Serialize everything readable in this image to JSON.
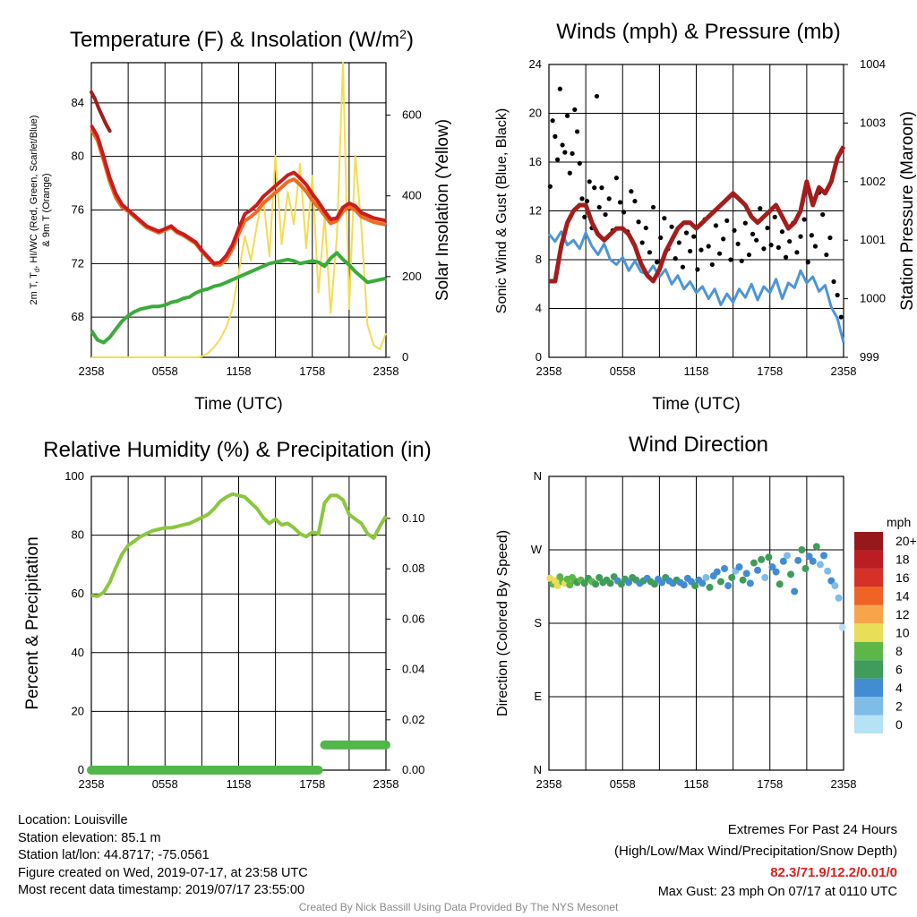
{
  "x_tick_labels": [
    "2358",
    "0558",
    "1158",
    "1758",
    "2358"
  ],
  "colors": {
    "temperature": "#c91d1d",
    "wind_chill": "#ee6b21",
    "dewpoint": "#3bab3b",
    "insolation": "#f3dc55",
    "wind_speed": "#4d96d6",
    "wind_gust": "#000000",
    "pressure": "#a31d1d",
    "humidity": "#8cc63f",
    "precipitation": "#52b74a"
  },
  "chart_data": [
    {
      "id": "temperature",
      "type": "line",
      "title": "Temperature (F) & Insolation (W/m",
      "title_sup": "2",
      "title_end": ")",
      "xlabel": "Time (UTC)",
      "ylabel_left_line1": "2m T, T",
      "ylabel_left_sub": "d",
      "ylabel_left_line1_end": ", HI/WC (Red, Green, Scarlet/Blue)",
      "ylabel_left_line2": "& 9m T (Orange)",
      "ylabel_right": "Solar Insolation (Yellow)",
      "xlim": [
        0,
        24
      ],
      "ylim": [
        65,
        87
      ],
      "y2lim": [
        0,
        730
      ],
      "yticks": [
        68,
        72,
        76,
        80,
        84
      ],
      "y2ticks": [
        0,
        200,
        400,
        600
      ],
      "x": [
        0,
        0.5,
        1,
        1.5,
        2,
        2.5,
        3,
        3.5,
        4,
        4.5,
        5,
        5.5,
        6,
        6.5,
        7,
        7.5,
        8,
        8.5,
        9,
        9.5,
        10,
        10.5,
        11,
        11.5,
        12,
        12.5,
        13,
        13.5,
        14,
        14.5,
        15,
        15.5,
        16,
        16.5,
        17,
        17.5,
        18,
        18.5,
        19,
        19.5,
        20,
        20.5,
        21,
        21.5,
        22,
        22.5,
        23,
        23.5,
        24
      ],
      "series": [
        {
          "key": "temperature",
          "values": [
            82.3,
            81.5,
            80.0,
            78.4,
            77.2,
            76.4,
            76.0,
            75.6,
            75.2,
            74.8,
            74.6,
            74.4,
            74.6,
            74.8,
            74.4,
            74.2,
            73.9,
            73.6,
            73.0,
            72.5,
            72.0,
            72.1,
            72.6,
            73.4,
            74.6,
            75.7,
            76.0,
            76.4,
            77.0,
            77.4,
            77.8,
            78.2,
            78.6,
            78.8,
            78.4,
            77.9,
            77.2,
            76.6,
            75.9,
            75.3,
            75.4,
            76.2,
            76.5,
            76.3,
            75.8,
            75.6,
            75.4,
            75.3,
            75.2
          ]
        },
        {
          "key": "wind_chill",
          "values": [
            82.0,
            81.2,
            79.7,
            78.1,
            76.9,
            76.2,
            75.9,
            75.5,
            75.1,
            74.7,
            74.5,
            74.3,
            74.5,
            74.7,
            74.3,
            74.1,
            73.8,
            73.5,
            72.9,
            72.4,
            71.9,
            71.9,
            72.3,
            73.1,
            74.2,
            75.2,
            75.5,
            75.9,
            76.5,
            76.9,
            77.3,
            77.7,
            78.1,
            78.3,
            77.9,
            77.4,
            76.7,
            76.2,
            75.6,
            75.0,
            75.2,
            75.9,
            76.2,
            76.0,
            75.5,
            75.3,
            75.1,
            75.0,
            74.9
          ]
        },
        {
          "key": "dewpoint",
          "values": [
            67.0,
            66.3,
            66.1,
            66.5,
            67.1,
            67.7,
            68.1,
            68.4,
            68.6,
            68.7,
            68.8,
            68.8,
            68.9,
            69.1,
            69.2,
            69.4,
            69.5,
            69.8,
            70.0,
            70.1,
            70.3,
            70.4,
            70.6,
            70.8,
            71.0,
            71.2,
            71.4,
            71.6,
            71.8,
            72.0,
            72.1,
            72.2,
            72.3,
            72.2,
            72.0,
            72.1,
            72.2,
            72.1,
            71.8,
            72.4,
            72.8,
            72.3,
            71.9,
            71.4,
            71.0,
            70.6,
            70.7,
            70.8,
            70.9
          ]
        },
        {
          "key": "insolation",
          "axis": "right",
          "values": [
            0,
            0,
            0,
            0,
            0,
            0,
            0,
            0,
            0,
            0,
            0,
            0,
            0,
            0,
            0,
            0,
            0,
            0,
            2,
            10,
            25,
            45,
            75,
            120,
            210,
            300,
            240,
            330,
            400,
            250,
            500,
            280,
            410,
            330,
            480,
            270,
            450,
            160,
            350,
            110,
            300,
            730,
            120,
            500,
            320,
            80,
            30,
            20,
            60
          ]
        }
      ],
      "side_series": [
        {
          "key": "temperature",
          "x": [
            0,
            0.3,
            0.6,
            0.9,
            1.2,
            1.5
          ],
          "values": [
            84.8,
            84.3,
            83.6,
            83.0,
            82.4,
            81.9
          ]
        }
      ]
    },
    {
      "id": "winds",
      "type": "line",
      "title": "Winds (mph) & Pressure (mb)",
      "xlabel": "Time (UTC)",
      "ylabel_left": "Sonic Wind & Gust (Blue, Black)",
      "ylabel_right": "Station Pressure (Maroon)",
      "xlim": [
        0,
        24
      ],
      "ylim": [
        0,
        24
      ],
      "y2lim": [
        999,
        1004
      ],
      "yticks": [
        0,
        4,
        8,
        12,
        16,
        20,
        24
      ],
      "y2ticks": [
        999,
        1000,
        1001,
        1002,
        1003,
        1004
      ],
      "x": [
        0,
        0.5,
        1,
        1.5,
        2,
        2.5,
        3,
        3.5,
        4,
        4.5,
        5,
        5.5,
        6,
        6.5,
        7,
        7.5,
        8,
        8.5,
        9,
        9.5,
        10,
        10.5,
        11,
        11.5,
        12,
        12.5,
        13,
        13.5,
        14,
        14.5,
        15,
        15.5,
        16,
        16.5,
        17,
        17.5,
        18,
        18.5,
        19,
        19.5,
        20,
        20.5,
        21,
        21.5,
        22,
        22.5,
        23,
        23.5,
        24
      ],
      "series": [
        {
          "key": "wind_speed",
          "values": [
            10.1,
            9.5,
            10.3,
            9.2,
            9.6,
            8.9,
            10.2,
            9.1,
            8.4,
            9.3,
            8.0,
            7.6,
            8.2,
            7.1,
            7.9,
            7.0,
            6.8,
            7.5,
            6.6,
            7.2,
            6.0,
            6.7,
            5.6,
            6.2,
            5.3,
            5.8,
            4.8,
            5.6,
            4.3,
            5.2,
            4.5,
            5.6,
            4.9,
            6.0,
            4.7,
            5.8,
            5.3,
            6.4,
            4.8,
            6.1,
            5.7,
            7.1,
            6.1,
            6.6,
            5.4,
            5.9,
            4.1,
            3.2,
            1.2
          ]
        },
        {
          "key": "pressure",
          "axis": "right",
          "values": [
            1000.3,
            1000.3,
            1000.9,
            1001.3,
            1001.5,
            1001.6,
            1001.6,
            1001.3,
            1001.1,
            1001.0,
            1001.1,
            1001.2,
            1001.2,
            1001.1,
            1000.9,
            1000.6,
            1000.4,
            1000.3,
            1000.5,
            1000.8,
            1001.0,
            1001.2,
            1001.3,
            1001.3,
            1001.2,
            1001.3,
            1001.4,
            1001.5,
            1001.6,
            1001.7,
            1001.8,
            1001.7,
            1001.6,
            1001.4,
            1001.3,
            1001.4,
            1001.5,
            1001.6,
            1001.4,
            1001.2,
            1001.3,
            1001.5,
            1002.0,
            1001.6,
            1001.9,
            1001.8,
            1002.0,
            1002.4,
            1002.6
          ]
        }
      ],
      "gust_points": {
        "x": [
          0.1,
          0.3,
          0.5,
          0.7,
          0.9,
          1.1,
          1.3,
          1.5,
          1.7,
          1.9,
          2.1,
          2.3,
          2.5,
          2.7,
          2.9,
          3.1,
          3.3,
          3.5,
          3.7,
          3.9,
          4.1,
          4.3,
          4.6,
          4.9,
          5.2,
          5.5,
          5.8,
          6.1,
          6.4,
          6.7,
          7.0,
          7.3,
          7.6,
          7.9,
          8.2,
          8.5,
          8.8,
          9.1,
          9.4,
          9.7,
          10.0,
          10.3,
          10.6,
          10.9,
          11.2,
          11.5,
          11.8,
          12.1,
          12.4,
          12.7,
          13.0,
          13.3,
          13.6,
          13.9,
          14.2,
          14.5,
          14.8,
          15.1,
          15.4,
          15.7,
          16.0,
          16.3,
          16.6,
          16.9,
          17.2,
          17.5,
          17.8,
          18.1,
          18.4,
          18.7,
          19.0,
          19.3,
          19.6,
          19.9,
          20.2,
          20.5,
          20.8,
          21.1,
          21.4,
          21.7,
          22.0,
          22.3,
          22.6,
          22.9,
          23.2,
          23.5,
          23.8
        ],
        "values": [
          14.0,
          19.4,
          18.1,
          16.2,
          22.0,
          17.4,
          16.8,
          19.8,
          15.1,
          16.7,
          20.3,
          18.5,
          15.9,
          13.0,
          11.5,
          12.8,
          14.4,
          10.6,
          13.9,
          21.4,
          12.3,
          13.9,
          11.7,
          13.0,
          10.4,
          14.7,
          12.7,
          11.9,
          10.3,
          13.6,
          12.8,
          11.1,
          9.4,
          10.6,
          8.6,
          12.3,
          7.8,
          9.8,
          11.4,
          8.9,
          10.7,
          8.1,
          9.4,
          7.4,
          10.2,
          8.7,
          9.9,
          7.2,
          8.8,
          11.3,
          9.1,
          7.6,
          10.8,
          8.5,
          9.7,
          11.2,
          8.0,
          10.4,
          9.3,
          7.9,
          11.0,
          8.4,
          10.1,
          9.6,
          12.2,
          8.9,
          10.6,
          9.2,
          11.5,
          9.0,
          10.3,
          8.2,
          9.5,
          11.0,
          8.6,
          9.9,
          11.3,
          7.8,
          10.0,
          9.1,
          13.5,
          11.7,
          8.4,
          9.8,
          6.2,
          5.1,
          3.3
        ]
      }
    },
    {
      "id": "humidity",
      "type": "line",
      "title": "Relative Humidity (%) & Precipitation (in)",
      "ylabel_left": "Percent & Precipitation",
      "xlim": [
        0,
        24
      ],
      "ylim": [
        0,
        100
      ],
      "y2lim": [
        0,
        0.1167
      ],
      "yticks": [
        0,
        20,
        40,
        60,
        80,
        100
      ],
      "y2ticks": [
        0.0,
        0.02,
        0.04,
        0.06,
        0.08,
        0.1
      ],
      "y2tick_labels": [
        "0.00",
        "0.02",
        "0.04",
        "0.06",
        "0.08",
        "0.10"
      ],
      "x": [
        0,
        0.5,
        1,
        1.5,
        2,
        2.5,
        3,
        3.5,
        4,
        4.5,
        5,
        5.5,
        6,
        6.5,
        7,
        7.5,
        8,
        8.5,
        9,
        9.5,
        10,
        10.5,
        11,
        11.5,
        12,
        12.5,
        13,
        13.5,
        14,
        14.5,
        15,
        15.5,
        16,
        16.5,
        17,
        17.5,
        18,
        18.5,
        19,
        19.5,
        20,
        20.5,
        21,
        21.5,
        22,
        22.5,
        23,
        23.5,
        24
      ],
      "series": [
        {
          "key": "humidity",
          "values": [
            59.5,
            59.2,
            60.5,
            64,
            69,
            73.5,
            76.5,
            78,
            79.5,
            80.5,
            81.5,
            82,
            82.5,
            82.5,
            83,
            83.5,
            84,
            85,
            86,
            87,
            89,
            91.5,
            93,
            94,
            93.5,
            93,
            91,
            89,
            86,
            84,
            85.5,
            83.5,
            84,
            82.5,
            80.5,
            79.5,
            81,
            80.5,
            91,
            93.5,
            93.5,
            92,
            87,
            85.5,
            84,
            80.5,
            79,
            83,
            86.5
          ]
        },
        {
          "key": "precipitation",
          "axis": "right",
          "values": [
            0,
            0,
            0,
            0,
            0,
            0,
            0,
            0,
            0,
            0,
            0,
            0,
            0,
            0,
            0,
            0,
            0,
            0,
            0,
            0,
            0,
            0,
            0,
            0,
            0,
            0,
            0,
            0,
            0,
            0,
            0,
            0,
            0,
            0,
            0,
            0,
            0,
            0,
            0.01,
            0.01,
            0.01,
            0.01,
            0.01,
            0.01,
            0.01,
            0.01,
            0.01,
            0.01,
            0.01
          ]
        }
      ]
    },
    {
      "id": "wind_direction",
      "type": "scatter",
      "title": "Wind Direction",
      "ylabel_left": "Direction (Colored By Speed)",
      "xlim": [
        0,
        24
      ],
      "ylim": [
        0,
        360
      ],
      "yticks": [
        0,
        90,
        180,
        270,
        360
      ],
      "ytick_labels": [
        "N",
        "E",
        "S",
        "W",
        "N"
      ],
      "x": [
        0.1,
        0.3,
        0.5,
        0.7,
        0.9,
        1.1,
        1.3,
        1.5,
        1.7,
        1.9,
        2.1,
        2.3,
        2.6,
        2.9,
        3.2,
        3.5,
        3.8,
        4.1,
        4.4,
        4.7,
        5.0,
        5.3,
        5.6,
        5.9,
        6.2,
        6.5,
        6.8,
        7.1,
        7.4,
        7.7,
        8.0,
        8.3,
        8.6,
        8.9,
        9.2,
        9.5,
        9.8,
        10.1,
        10.4,
        10.7,
        11.0,
        11.3,
        11.6,
        11.9,
        12.2,
        12.5,
        12.8,
        13.1,
        13.4,
        13.7,
        14.0,
        14.3,
        14.6,
        14.9,
        15.2,
        15.5,
        15.8,
        16.1,
        16.4,
        16.7,
        17.0,
        17.3,
        17.6,
        17.9,
        18.2,
        18.5,
        18.8,
        19.1,
        19.4,
        19.7,
        20.0,
        20.3,
        20.6,
        20.9,
        21.2,
        21.5,
        21.8,
        22.1,
        22.4,
        22.7,
        23.0,
        23.3,
        23.6,
        23.9
      ],
      "values": [
        235,
        228,
        232,
        226,
        237,
        231,
        229,
        234,
        227,
        236,
        232,
        230,
        233,
        229,
        235,
        231,
        228,
        236,
        230,
        233,
        229,
        237,
        232,
        228,
        234,
        230,
        236,
        233,
        229,
        232,
        235,
        231,
        228,
        234,
        230,
        236,
        232,
        229,
        233,
        230,
        227,
        235,
        231,
        226,
        233,
        229,
        236,
        224,
        238,
        243,
        231,
        247,
        226,
        236,
        244,
        249,
        233,
        241,
        229,
        254,
        245,
        258,
        236,
        261,
        249,
        243,
        228,
        256,
        263,
        240,
        219,
        257,
        270,
        247,
        262,
        256,
        274,
        252,
        263,
        244,
        232,
        226,
        211,
        175
      ],
      "speeds": [
        10,
        9,
        11,
        10,
        9,
        8,
        10,
        9,
        8,
        9,
        8,
        7,
        8,
        7,
        6,
        8,
        7,
        6,
        7,
        6,
        6,
        7,
        5,
        6,
        7,
        5,
        6,
        7,
        5,
        6,
        5,
        7,
        6,
        4,
        5,
        6,
        5,
        4,
        6,
        5,
        4,
        5,
        4,
        6,
        4,
        5,
        3,
        6,
        4,
        5,
        6,
        4,
        5,
        6,
        3,
        5,
        6,
        4,
        5,
        6,
        4,
        7,
        3,
        6,
        5,
        4,
        6,
        5,
        3,
        6,
        4,
        5,
        6,
        7,
        4,
        5,
        6,
        3,
        4,
        2,
        4,
        3,
        2,
        1
      ],
      "colorbar": {
        "unit": "mph",
        "labels": [
          "0",
          "2",
          "4",
          "6",
          "8",
          "10",
          "12",
          "14",
          "16",
          "18",
          "20+"
        ],
        "colors": [
          "#b5e2f5",
          "#7fbce8",
          "#418cd2",
          "#3f9c5a",
          "#5db748",
          "#e8de57",
          "#f8a44b",
          "#ef6324",
          "#d53127",
          "#bb1d23",
          "#96181b"
        ]
      }
    }
  ],
  "footer": {
    "location": "Location: Louisville",
    "elevation": "Station elevation: 85.1 m",
    "latlon": "Station lat/lon: 44.8717; -75.0561",
    "created": "Figure created on Wed, 2019-07-17, at 23:58 UTC",
    "recent": "Most recent data timestamp: 2019/07/17 23:55:00",
    "credit": "Created By Nick Bassill Using Data Provided By The NYS Mesonet"
  },
  "extremes": {
    "title": "Extremes For Past 24 Hours",
    "subtitle": "(High/Low/Max Wind/Precipitation/Snow Depth)",
    "values": "82.3/71.9/12.2/0.01/0",
    "gust": "Max Gust: 23 mph On 07/17 at 0110 UTC"
  }
}
